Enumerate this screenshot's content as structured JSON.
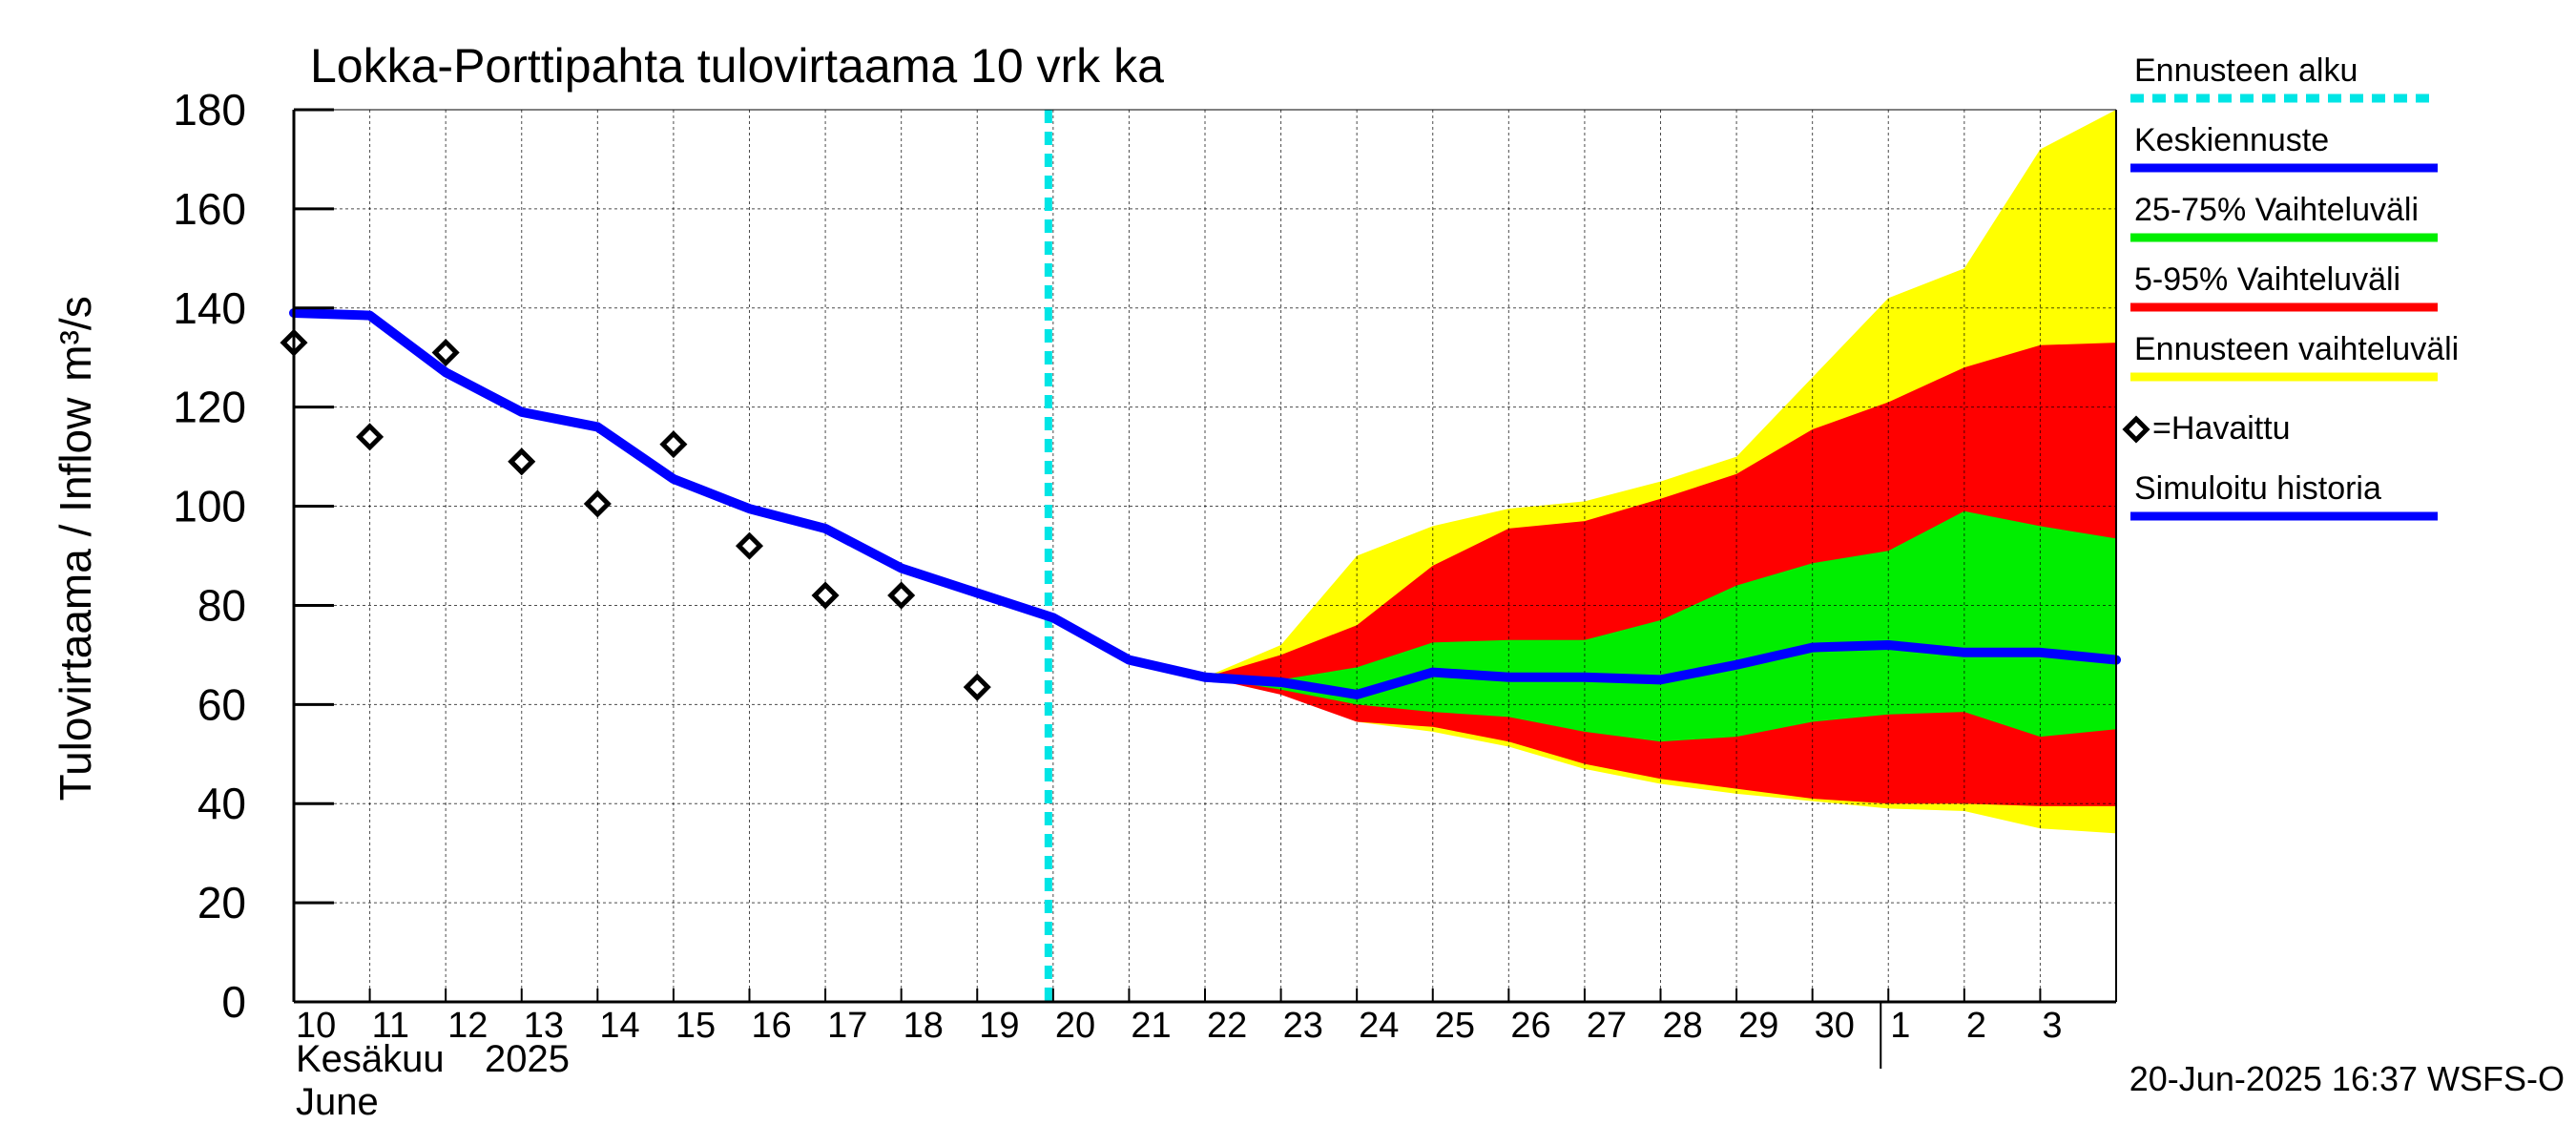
{
  "chart_data": {
    "type": "line",
    "title": "Lokka-Porttipahta tulovirtaama 10 vrk ka",
    "ylabel": "Tulovirtaama / Inflow",
    "yunit": "m³/s",
    "ylim": [
      0,
      180
    ],
    "yticks": [
      0,
      20,
      40,
      60,
      80,
      100,
      120,
      140,
      160,
      180
    ],
    "x_start_day": 10,
    "x_end_day": 34,
    "x_tick_labels": [
      "10",
      "11",
      "12",
      "13",
      "14",
      "15",
      "16",
      "17",
      "18",
      "19",
      "20",
      "21",
      "22",
      "23",
      "24",
      "25",
      "26",
      "27",
      "28",
      "29",
      "30",
      "1",
      "2",
      "3"
    ],
    "month_separator_day": 31,
    "xlabel_month_fi": "Kesäkuu",
    "xlabel_year": "2025",
    "xlabel_month_en": "June",
    "forecast_start_day": 20,
    "series": [
      {
        "name": "Simuloitu historia",
        "x": [
          10,
          11,
          12,
          13,
          14,
          15,
          16,
          17,
          18,
          19,
          20,
          21,
          22
        ],
        "y": [
          139,
          138.5,
          127,
          119,
          116,
          105.5,
          99.5,
          95.5,
          87.5,
          82.5,
          77.5,
          69,
          65.5
        ]
      },
      {
        "name": "Keskiennuste",
        "x": [
          22,
          23,
          24,
          25,
          26,
          27,
          28,
          29,
          30,
          31,
          32,
          33,
          34
        ],
        "y": [
          65.5,
          64.5,
          62,
          66.5,
          65.5,
          65.5,
          65,
          68,
          71.5,
          72,
          70.5,
          70.5,
          69
        ]
      },
      {
        "name": "Havaittu",
        "x": [
          10,
          11,
          12,
          13,
          14,
          15,
          16,
          17,
          18,
          19
        ],
        "y": [
          133,
          114,
          131,
          109,
          100.5,
          112.5,
          92,
          82,
          82,
          63.5
        ]
      }
    ],
    "bands": [
      {
        "name": "Ennusteen vaihteluväli",
        "x": [
          22,
          23,
          24,
          25,
          26,
          27,
          28,
          29,
          30,
          31,
          32,
          33,
          34
        ],
        "upper": [
          65.5,
          72,
          90,
          96,
          99.5,
          101,
          105,
          110,
          126,
          142,
          148,
          172,
          180
        ],
        "lower": [
          65.5,
          62.5,
          56.5,
          54.5,
          51.5,
          47,
          44,
          42,
          40.5,
          39,
          38.5,
          35,
          34
        ]
      },
      {
        "name": "5-95% Vaihteluväli",
        "x": [
          22,
          23,
          24,
          25,
          26,
          27,
          28,
          29,
          30,
          31,
          32,
          33,
          34
        ],
        "upper": [
          65.5,
          70,
          76,
          88,
          95.5,
          97,
          101.5,
          106.5,
          115.5,
          121,
          128,
          132.5,
          133
        ],
        "lower": [
          65.5,
          62,
          56.5,
          55.5,
          52.5,
          48,
          45,
          43,
          41,
          40,
          40,
          39.5,
          39.5
        ]
      },
      {
        "name": "25-75% Vaihteluväli",
        "x": [
          22,
          23,
          24,
          25,
          26,
          27,
          28,
          29,
          30,
          31,
          32,
          33,
          34
        ],
        "upper": [
          65.5,
          65,
          67.5,
          72.5,
          73,
          73,
          77,
          84,
          88.5,
          91,
          99,
          96,
          93.5
        ],
        "lower": [
          65.5,
          63,
          60,
          58.5,
          57.5,
          54.5,
          52.5,
          53.5,
          56.5,
          58,
          58.5,
          53.5,
          55
        ]
      }
    ],
    "legend": [
      {
        "label": "Ennusteen alku",
        "color": "#00e5e5",
        "style": "dashed"
      },
      {
        "label": "Keskiennuste",
        "color": "#0000ff",
        "style": "line"
      },
      {
        "label": "25-75% Vaihteluväli",
        "color": "#00ee00",
        "style": "line"
      },
      {
        "label": "5-95% Vaihteluväli",
        "color": "#ff0000",
        "style": "line"
      },
      {
        "label": "Ennusteen vaihteluväli",
        "color": "#ffff00",
        "style": "line"
      },
      {
        "label": "=Havaittu",
        "color": "#000000",
        "style": "marker"
      },
      {
        "label": "Simuloitu historia",
        "color": "#0000ff",
        "style": "line"
      }
    ],
    "colors": {
      "band_outer": "#ffff00",
      "band_5_95": "#ff0000",
      "band_25_75": "#00ee00",
      "median": "#0000ff",
      "forecast_start": "#00e5e5",
      "grid": "#000000"
    },
    "footer": "20-Jun-2025 16:37 WSFS-O"
  }
}
